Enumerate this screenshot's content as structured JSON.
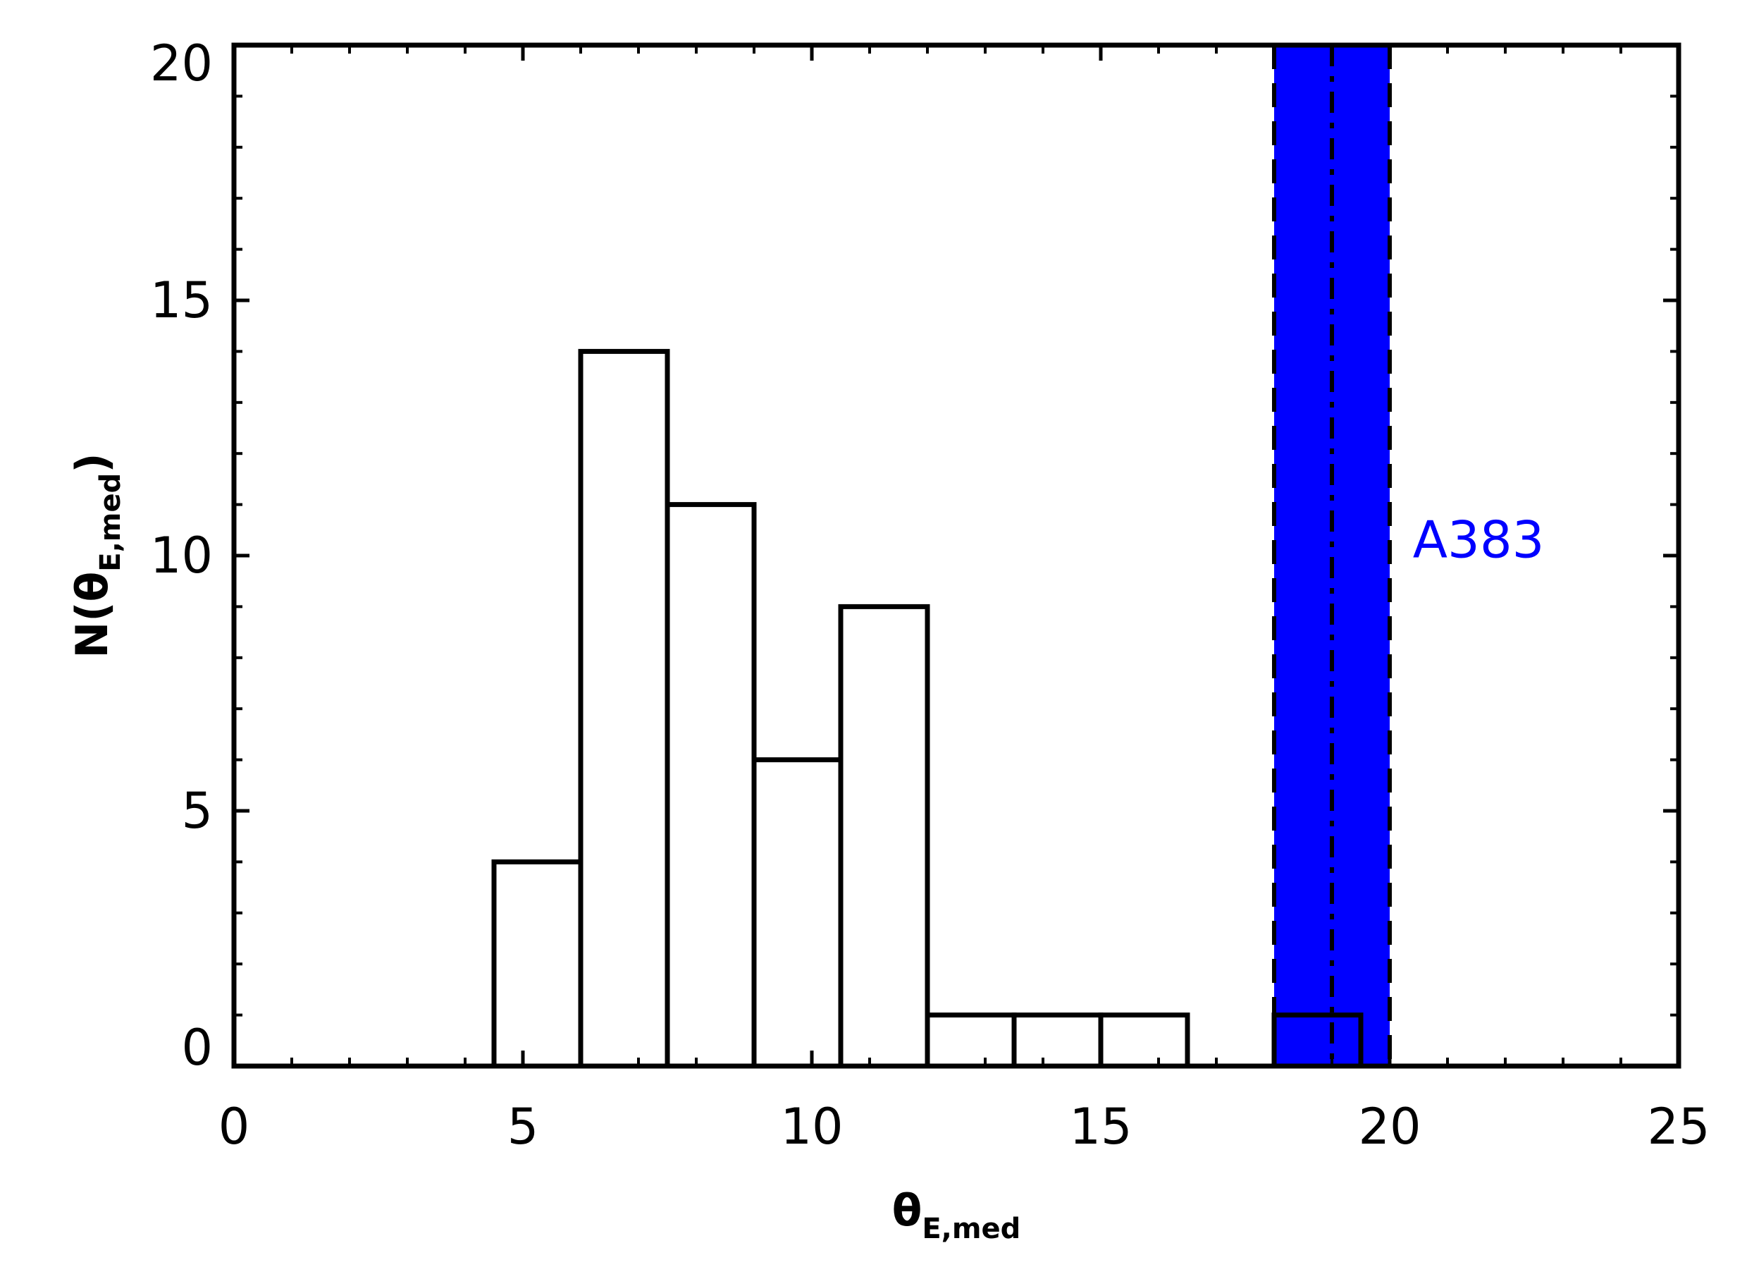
{
  "chart_data": {
    "type": "histogram",
    "xlabel": {
      "main": "θ",
      "sub": "E,med"
    },
    "ylabel": {
      "prefix": "N(",
      "main": "θ",
      "sub": "E,med",
      "suffix": ")"
    },
    "xlim": [
      0,
      25
    ],
    "ylim": [
      0,
      20
    ],
    "x_ticks": [
      0,
      5,
      10,
      15,
      20,
      25
    ],
    "y_ticks": [
      0,
      5,
      10,
      15,
      20
    ],
    "x_tick_labels": [
      "0",
      "5",
      "10",
      "15",
      "20",
      "25"
    ],
    "y_tick_labels": [
      "0",
      "5",
      "10",
      "15",
      "20"
    ],
    "bins": [
      {
        "x0": 4.5,
        "x1": 6.0,
        "count": 4
      },
      {
        "x0": 6.0,
        "x1": 7.5,
        "count": 14
      },
      {
        "x0": 7.5,
        "x1": 9.0,
        "count": 11
      },
      {
        "x0": 9.0,
        "x1": 10.5,
        "count": 6
      },
      {
        "x0": 10.5,
        "x1": 12.0,
        "count": 9
      },
      {
        "x0": 12.0,
        "x1": 13.5,
        "count": 1
      },
      {
        "x0": 13.5,
        "x1": 15.0,
        "count": 1
      },
      {
        "x0": 15.0,
        "x1": 16.5,
        "count": 1
      },
      {
        "x0": 16.5,
        "x1": 18.0,
        "count": 0
      },
      {
        "x0": 18.0,
        "x1": 19.5,
        "count": 1
      }
    ],
    "band": {
      "x0": 18.0,
      "x1": 20.0,
      "median": 19.0,
      "color": "#0000ff"
    },
    "annotation": {
      "text": "A383",
      "x": 20.4,
      "y": 10.3,
      "color": "#0000ff"
    },
    "grid": false,
    "legend": "none"
  }
}
